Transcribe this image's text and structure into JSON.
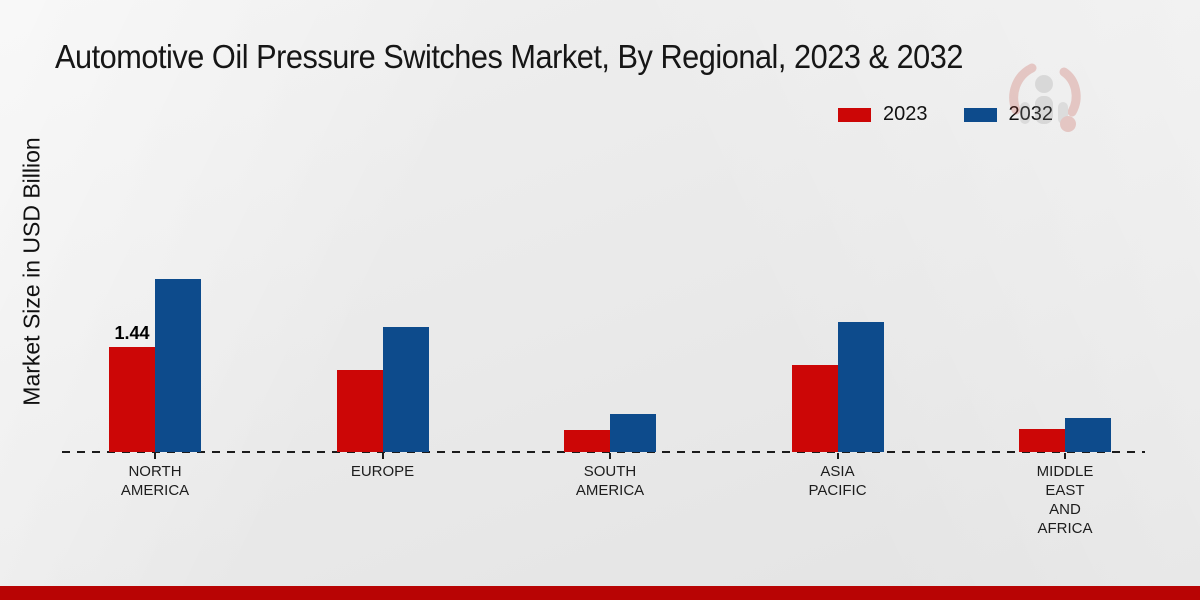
{
  "title": "Automotive Oil Pressure Switches Market, By Regional, 2023 & 2032",
  "y_axis_label": "Market Size in USD Billion",
  "legend": {
    "items": [
      {
        "label": "2023",
        "color": "#cc0606"
      },
      {
        "label": "2032",
        "color": "#0d4b8c"
      }
    ]
  },
  "colors": {
    "series_2023": "#cc0606",
    "series_2032": "#0d4b8c",
    "footer_band": "#b80404",
    "baseline": "#1c1c1c",
    "background": "#e9e9e9"
  },
  "chart_data": {
    "type": "bar",
    "title": "Automotive Oil Pressure Switches Market, By Regional, 2023 & 2032",
    "ylabel": "Market Size in USD Billion",
    "xlabel": "",
    "categories": [
      "NORTH AMERICA",
      "EUROPE",
      "SOUTH AMERICA",
      "ASIA PACIFIC",
      "MIDDLE EAST AND AFRICA"
    ],
    "category_label_lines": [
      [
        "NORTH",
        "AMERICA"
      ],
      [
        "EUROPE"
      ],
      [
        "SOUTH",
        "AMERICA"
      ],
      [
        "ASIA",
        "PACIFIC"
      ],
      [
        "MIDDLE",
        "EAST",
        "AND",
        "AFRICA"
      ]
    ],
    "series": [
      {
        "name": "2023",
        "color": "#cc0606",
        "values": [
          1.44,
          1.12,
          0.3,
          1.2,
          0.31
        ]
      },
      {
        "name": "2032",
        "color": "#0d4b8c",
        "values": [
          2.37,
          1.71,
          0.52,
          1.79,
          0.47
        ]
      }
    ],
    "bar_labels": [
      {
        "series": "2023",
        "category_index": 0,
        "text": "1.44"
      }
    ],
    "ylim": [
      0,
      2.6
    ],
    "grid": false,
    "baseline_style": "dashed",
    "legend_position": "top-right"
  }
}
